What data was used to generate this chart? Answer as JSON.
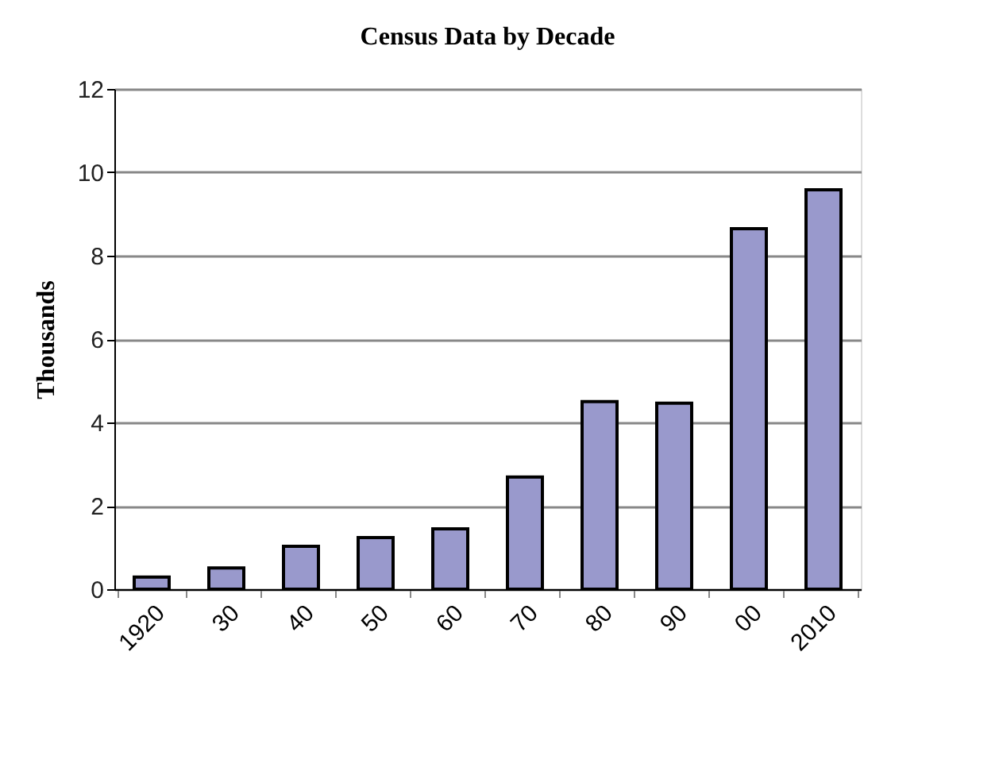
{
  "chart_data": {
    "type": "bar",
    "title": "Census Data by Decade",
    "ylabel": "Thousands",
    "categories": [
      "1920",
      "30",
      "40",
      "50",
      "60",
      "70",
      "80",
      "90",
      "00",
      "2010"
    ],
    "values": [
      0.29,
      0.51,
      1.03,
      1.24,
      1.45,
      2.69,
      4.5,
      4.46,
      8.65,
      9.58
    ],
    "color": "#9999cc",
    "ylim": [
      0,
      12
    ],
    "yticks": [
      0,
      2,
      4,
      6,
      8,
      10,
      12
    ],
    "grid": "y"
  }
}
